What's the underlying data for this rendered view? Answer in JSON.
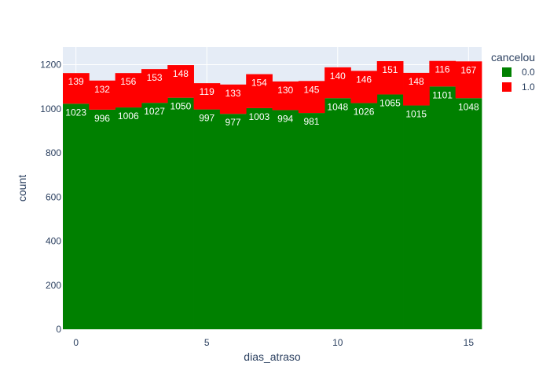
{
  "chart_data": {
    "type": "bar",
    "stacked": true,
    "x": [
      0,
      1,
      2,
      3,
      4,
      5,
      6,
      7,
      8,
      9,
      10,
      11,
      12,
      13,
      14,
      15
    ],
    "xlabel": "dias_atraso",
    "ylabel": "count",
    "xticks": [
      "0",
      "5",
      "10",
      "15"
    ],
    "yticks": [
      "0",
      "200",
      "400",
      "600",
      "800",
      "1000",
      "1200"
    ],
    "xlim": [
      -0.5,
      15.5
    ],
    "ylim": [
      0,
      1280
    ],
    "grid": true,
    "legend_title": "cancelou",
    "legend_placement": "top-right",
    "series": [
      {
        "name": "0.0",
        "color": "#008000",
        "values": [
          1023,
          996,
          1006,
          1027,
          1050,
          997,
          977,
          1003,
          994,
          981,
          1048,
          1026,
          1065,
          1015,
          1101,
          1048
        ]
      },
      {
        "name": "1.0",
        "color": "#ff0000",
        "values": [
          139,
          132,
          156,
          153,
          148,
          119,
          133,
          154,
          130,
          145,
          140,
          146,
          151,
          148,
          116,
          167
        ]
      }
    ]
  }
}
